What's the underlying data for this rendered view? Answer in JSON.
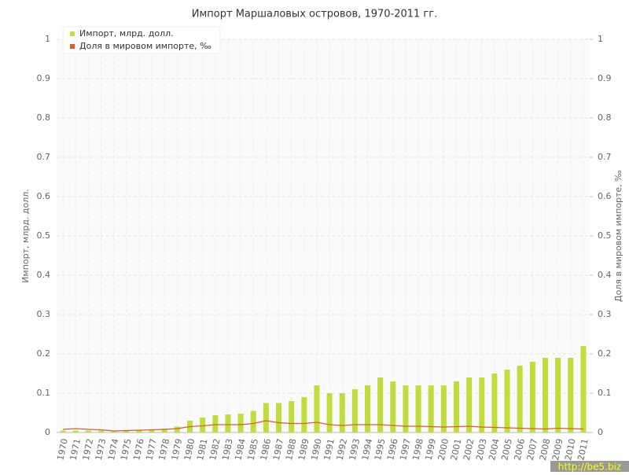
{
  "chart_data": {
    "type": "bar-line",
    "title": "Импорт Маршаловых островов, 1970-2011 гг.",
    "y_label": "Импорт, млрд. долл.",
    "y2_label": "Доля в мировом импорте, ‰",
    "watermark": "http://be5.biz",
    "categories": [
      "1970",
      "1971",
      "1972",
      "1973",
      "1974",
      "1975",
      "1976",
      "1977",
      "1978",
      "1979",
      "1980",
      "1981",
      "1982",
      "1983",
      "1984",
      "1985",
      "1986",
      "1987",
      "1988",
      "1989",
      "1990",
      "1991",
      "1992",
      "1993",
      "1994",
      "1995",
      "1996",
      "1997",
      "1998",
      "1999",
      "2000",
      "2001",
      "2002",
      "2003",
      "2004",
      "2005",
      "2006",
      "2007",
      "2008",
      "2009",
      "2010",
      "2011"
    ],
    "series": [
      {
        "name": "Импорт, млрд. долл.",
        "color": "#c2dc3c",
        "kind": "bar",
        "values": [
          0.005,
          0.005,
          0.005,
          0.005,
          0.003,
          0.005,
          0.006,
          0.008,
          0.01,
          0.015,
          0.03,
          0.038,
          0.044,
          0.046,
          0.048,
          0.055,
          0.075,
          0.075,
          0.08,
          0.09,
          0.12,
          0.1,
          0.1,
          0.11,
          0.12,
          0.14,
          0.13,
          0.12,
          0.12,
          0.12,
          0.12,
          0.13,
          0.14,
          0.14,
          0.15,
          0.16,
          0.17,
          0.18,
          0.19,
          0.19,
          0.19,
          0.22
        ]
      },
      {
        "name": "Доля в мировом импорте, ‰",
        "color": "#e05a2b",
        "kind": "line",
        "axis": "y2",
        "values": [
          0.008,
          0.01,
          0.008,
          0.007,
          0.004,
          0.005,
          0.006,
          0.007,
          0.008,
          0.01,
          0.015,
          0.017,
          0.02,
          0.02,
          0.02,
          0.023,
          0.03,
          0.025,
          0.023,
          0.023,
          0.026,
          0.02,
          0.018,
          0.02,
          0.02,
          0.02,
          0.018,
          0.016,
          0.016,
          0.015,
          0.014,
          0.015,
          0.016,
          0.014,
          0.013,
          0.012,
          0.011,
          0.01,
          0.009,
          0.011,
          0.01,
          0.009
        ]
      }
    ],
    "ylim": [
      0,
      1
    ],
    "yticks": [
      0,
      0.1,
      0.2,
      0.3,
      0.4,
      0.5,
      0.6,
      0.7,
      0.8,
      0.9,
      1
    ],
    "y2lim": [
      0,
      1
    ],
    "y2ticks": [
      0,
      0.1,
      0.2,
      0.3,
      0.4,
      0.5,
      0.6,
      0.7,
      0.8,
      0.9,
      1
    ],
    "grid": true,
    "legend": "top-left"
  }
}
